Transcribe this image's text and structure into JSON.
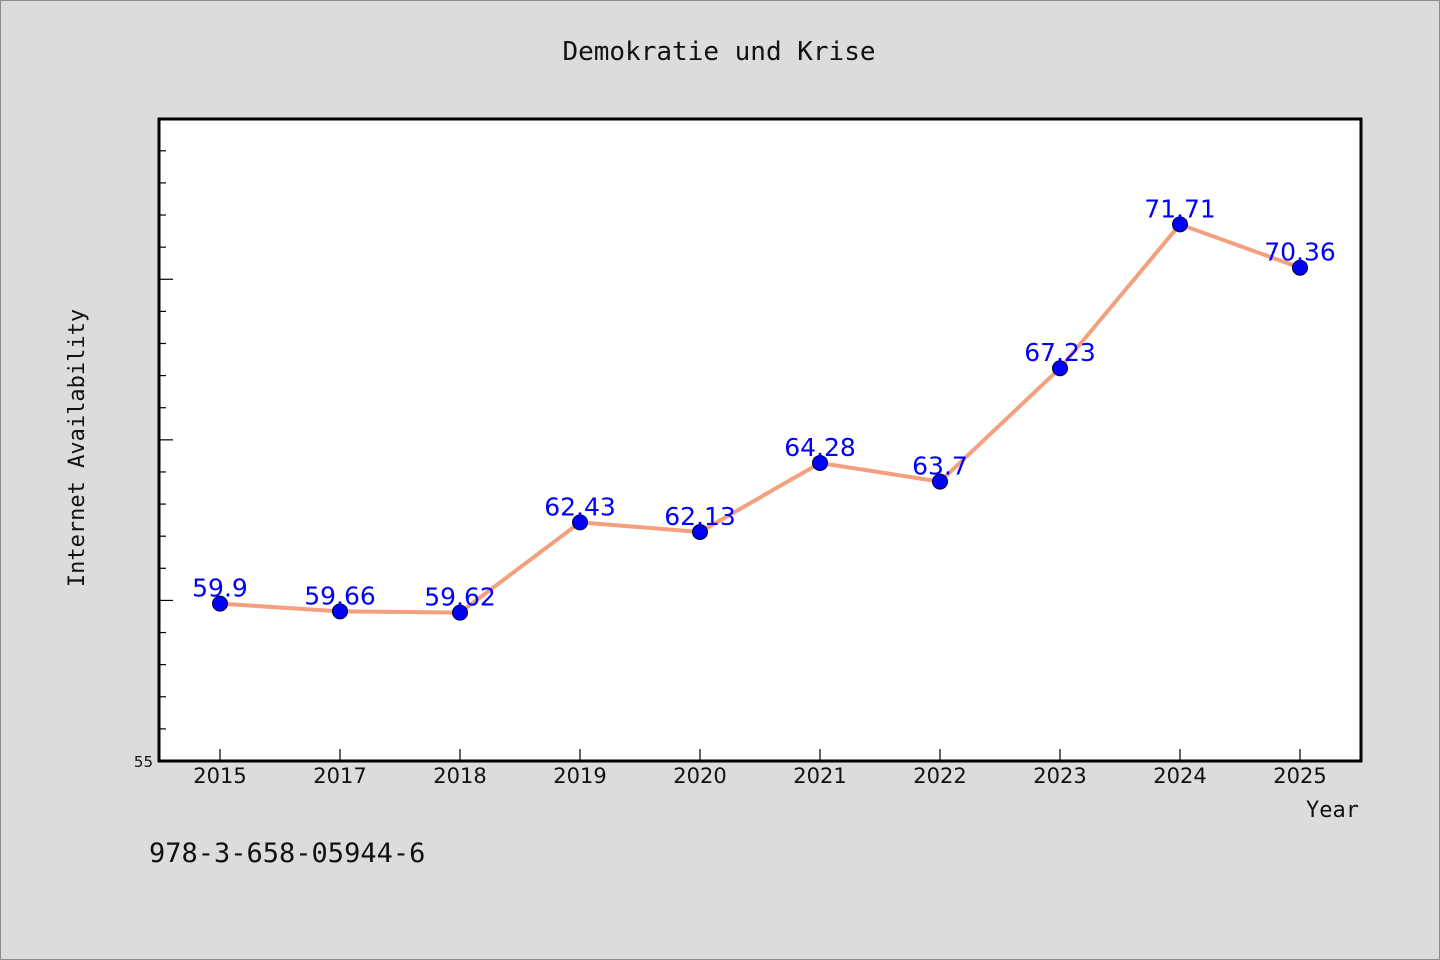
{
  "chart_data": {
    "type": "line",
    "title": "Demokratie und Krise",
    "xlabel": "Year",
    "ylabel": "Internet Availability",
    "categories": [
      "2015",
      "2017",
      "2018",
      "2019",
      "2020",
      "2021",
      "2022",
      "2023",
      "2024",
      "2025"
    ],
    "series": [
      {
        "values": [
          59.9,
          59.66,
          59.62,
          62.43,
          62.13,
          64.28,
          63.7,
          67.23,
          71.71,
          70.36
        ],
        "data_labels": [
          "59.9",
          "59.66",
          "59.62",
          "62.43",
          "62.13",
          "64.28",
          "63.7",
          "67.23",
          "71.71",
          "70.36"
        ],
        "line_color": "#f4a07f",
        "marker_color": "#0000ff"
      }
    ],
    "ylim": [
      55,
      74.99
    ],
    "y_tick_labels": [
      {
        "value": 55,
        "label": "55"
      }
    ],
    "y_minor_step": 1,
    "y_major_step": 5,
    "grid": false,
    "legend": "none",
    "plot_background": "#ffffff",
    "figure_background": "#dcdcdc"
  },
  "footnote": "978-3-658-05944-6"
}
